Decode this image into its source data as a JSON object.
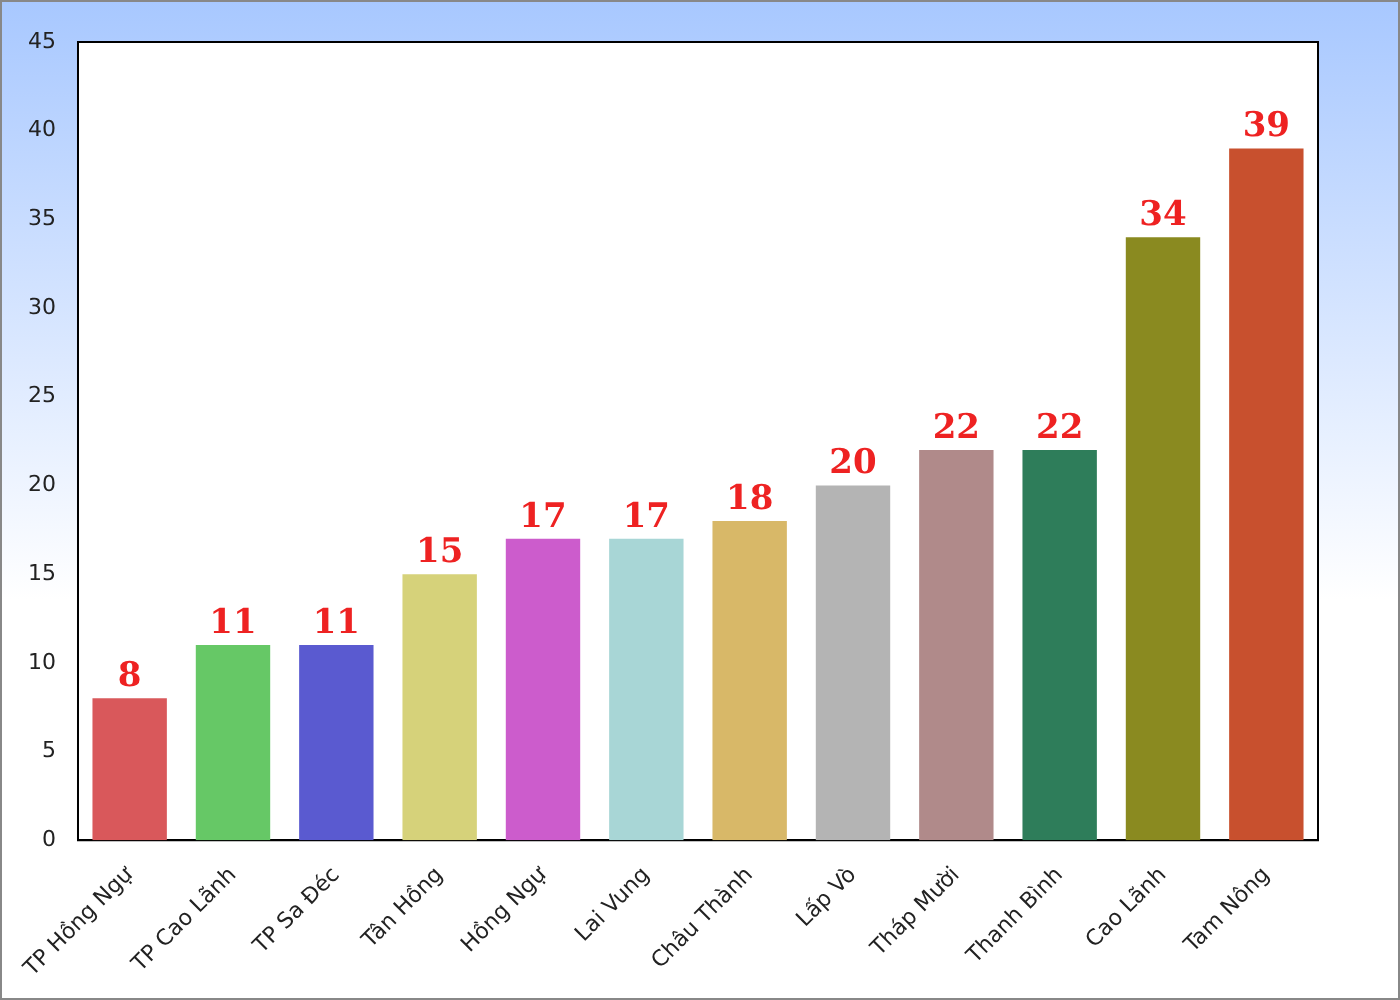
{
  "chart_data": {
    "type": "bar",
    "categories": [
      "TP Hồng Ngự",
      "TP Cao Lãnh",
      "TP Sa Đéc",
      "Tân Hồng",
      "Hồng Ngự",
      "Lai Vung",
      "Châu Thành",
      "Lấp Vò",
      "Tháp Mười",
      "Thanh Bình",
      "Cao Lãnh",
      "Tam Nông"
    ],
    "values": [
      8,
      11,
      11,
      15,
      17,
      17,
      18,
      20,
      22,
      22,
      34,
      39
    ],
    "colors": [
      "#d9585b",
      "#66c866",
      "#5a5ad0",
      "#d6d27a",
      "#cc5ccc",
      "#a8d6d6",
      "#d8b868",
      "#b4b4b4",
      "#b08a8a",
      "#2e7d5a",
      "#8a8a20",
      "#c8502e"
    ],
    "ylim": [
      0,
      45
    ],
    "yticks": [
      0,
      5,
      10,
      15,
      20,
      25,
      30,
      35,
      40,
      45
    ],
    "grid": false,
    "legend": false,
    "data_labels": true
  }
}
